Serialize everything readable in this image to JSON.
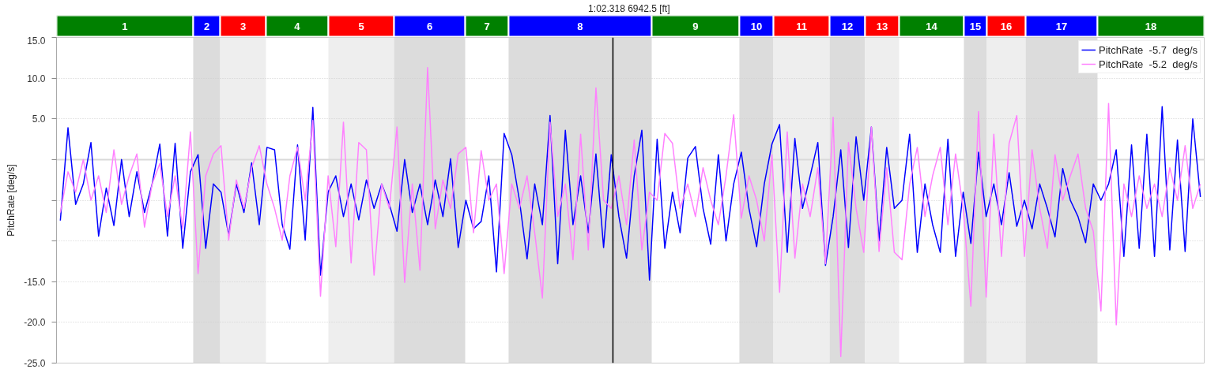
{
  "chart_data": {
    "type": "line",
    "title": "1:02.318  6942.5 [ft]",
    "ylabel": "PitchRate [deg/s]",
    "annotations": [
      "1",
      "2",
      "3",
      "4",
      "5",
      "6",
      "7",
      "8",
      "9",
      "10",
      "11",
      "12",
      "13",
      "14",
      "15",
      "16",
      "17",
      "18"
    ],
    "categories": [
      null,
      null,
      null,
      null,
      null,
      null,
      null,
      null,
      null,
      null,
      null,
      null,
      null,
      null,
      null,
      null,
      null,
      null,
      null,
      null,
      null,
      null,
      null,
      null,
      null,
      null,
      null,
      null,
      null,
      null,
      null,
      null,
      null,
      null,
      null,
      null,
      null,
      null,
      null,
      null,
      null,
      null,
      null,
      null,
      null,
      null,
      null,
      null,
      null,
      null,
      null,
      null,
      null,
      null,
      null,
      null,
      null,
      null,
      null,
      null,
      null,
      null,
      null,
      null,
      null,
      null,
      null,
      null,
      null,
      null,
      null,
      null,
      null,
      null,
      null,
      null,
      null,
      null,
      null,
      null,
      null,
      null,
      null,
      null,
      null,
      null,
      null,
      null,
      null,
      null,
      null,
      null,
      null,
      null,
      null,
      null,
      null,
      null,
      null,
      null,
      null,
      null,
      null,
      null,
      null,
      null,
      null,
      null,
      null,
      null,
      null,
      null,
      null,
      null,
      null,
      null,
      null,
      null,
      null,
      null,
      null,
      null,
      null,
      null,
      null,
      null,
      null,
      null,
      null,
      null,
      null,
      null,
      null,
      null,
      null,
      null,
      null,
      null,
      null,
      null,
      null,
      null,
      null,
      null,
      null,
      null,
      null,
      null,
      null,
      null
    ],
    "series": [
      {
        "name": "PitchRate  -5.7  deg/s",
        "color": "#0000ff",
        "values": [
          -7.5,
          3.9,
          -5.5,
          -3,
          2.1,
          -9.4,
          -3.5,
          -8.1,
          0,
          -7,
          -1.5,
          -6.5,
          -3,
          1.9,
          -9.4,
          2.0,
          -10.9,
          -1.5,
          0.6,
          -10.9,
          -3,
          -4,
          -9.3,
          -3,
          -6.5,
          -0.4,
          -8,
          1.5,
          1.2,
          -8,
          -11,
          1.8,
          -9.9,
          6.4,
          -14.2,
          -4,
          -2,
          -7,
          -3,
          -7.4,
          -2.5,
          -6,
          -3,
          -5.5,
          -8.8,
          0,
          -6.5,
          -3,
          -8,
          -2.5,
          -7,
          0.1,
          -10.8,
          -5,
          -8.5,
          -7.6,
          -2,
          -13.8,
          3.2,
          0.6,
          -5,
          -12.2,
          -3,
          -8,
          5.4,
          -12.8,
          3.6,
          -8,
          -2,
          -9,
          0.7,
          -10.8,
          0.6,
          -7,
          -12.1,
          -2,
          3.6,
          -14.8,
          2.5,
          -10.9,
          -4,
          -9,
          0.2,
          1.6,
          -6,
          -10.4,
          0.6,
          -10,
          -3,
          0.9,
          -6,
          -10.7,
          -3,
          1.9,
          4.3,
          -11.4,
          2.6,
          -6,
          -2,
          2.1,
          -13,
          -7,
          1.2,
          -10.8,
          2.8,
          -5,
          4.0,
          -10,
          1.5,
          -6,
          -5,
          3.1,
          -11.4,
          -3,
          -8,
          -11.4,
          2.5,
          -11.9,
          -4,
          -10.3,
          0.9,
          -7,
          -3,
          -8,
          -1.6,
          -8.2,
          -5,
          -8.5,
          -3,
          -6,
          -9.5,
          -1.1,
          -5,
          -7,
          -10.2,
          -3,
          -5,
          -3,
          1.2,
          -11.9,
          1.8,
          -10.9,
          3.1,
          -11.9,
          6.5,
          -11.1,
          2.4,
          -11.3,
          5.0,
          -4.6
        ]
      },
      {
        "name": "PitchRate  -5.2  deg/s",
        "color": "#ff80ff",
        "values": [
          -6.5,
          -1.5,
          -4,
          0,
          -5,
          -2,
          -6.5,
          1.2,
          -5.5,
          -2,
          0.7,
          -8.3,
          -3,
          -0.5,
          -7,
          -2,
          -8.5,
          3.4,
          -14,
          -2,
          0.7,
          1.7,
          -9.9,
          -2.5,
          -6,
          -1,
          1.7,
          -3,
          -6,
          -9.9,
          -2,
          1.5,
          -5,
          4.8,
          -16.8,
          -2,
          -10.7,
          4.6,
          -12.7,
          2.1,
          1.2,
          -14.2,
          -3,
          -6,
          4.0,
          -15.1,
          -3,
          -13.6,
          11.3,
          -8.5,
          -2.5,
          -6,
          0.7,
          1.5,
          -9,
          1.1,
          -5,
          -3,
          -14,
          -3,
          -6,
          -2,
          -9,
          -17,
          4.6,
          -7,
          -3,
          -12.3,
          3.1,
          -11.1,
          8.8,
          -5,
          -6,
          -2,
          -8,
          2.4,
          -11.1,
          -4,
          -5,
          3.2,
          2.0,
          -6,
          -3,
          -7,
          -1,
          -5,
          -8,
          -2,
          5.5,
          -7.2,
          -2,
          -5,
          -10,
          0.6,
          -16.3,
          3.4,
          -12.1,
          -3,
          -7,
          -1,
          -12.8,
          5.2,
          -24.2,
          2.1,
          -6,
          -11.4,
          4.0,
          -11.3,
          -1,
          -11.4,
          -12.3,
          -3,
          1.5,
          -7,
          -2,
          1.5,
          -8,
          0.7,
          -6,
          -18,
          5.9,
          -16.9,
          3.1,
          -11.9,
          2.0,
          5.4,
          -11.9,
          1.2,
          -6,
          -10.9,
          0.6,
          -5,
          -2,
          0.7,
          -6,
          -8.8,
          -18.6,
          6.9,
          -20.3,
          -3,
          -7,
          -2,
          -6,
          -3,
          -7,
          -1,
          -5,
          1.7,
          -6,
          -3
        ]
      }
    ],
    "ylim": [
      -25,
      15
    ],
    "yticks": [
      {
        "value": 15,
        "label": "15.0"
      },
      {
        "value": 10,
        "label": "10.0"
      },
      {
        "value": 5,
        "label": "5.0"
      },
      {
        "value": 0,
        "label": null
      },
      {
        "value": -5,
        "label": null
      },
      {
        "value": -10,
        "label": null
      },
      {
        "value": -15,
        "label": "-15.0"
      },
      {
        "value": -20,
        "label": "-20.0"
      },
      {
        "value": -25,
        "label": "-25.0"
      }
    ],
    "tick_labels": "y",
    "grid": "y",
    "legend": "top right",
    "ref_lines": [
      {
        "axis": "y",
        "value": 0,
        "color": "#d9d9d9"
      }
    ]
  }
}
